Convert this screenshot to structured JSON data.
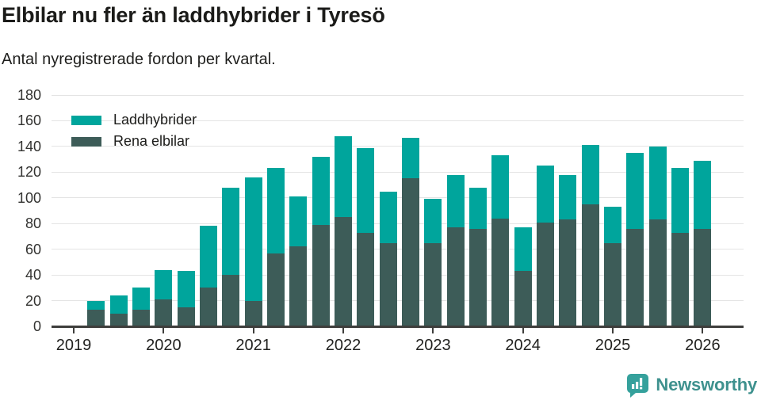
{
  "header": {
    "title": "Elbilar nu fler än laddhybrider i Tyresö",
    "subtitle": "Antal nyregistrerade fordon per kvartal."
  },
  "legend": {
    "items": [
      {
        "label": "Laddhybrider",
        "color": "#00a59c"
      },
      {
        "label": "Rena elbilar",
        "color": "#3d5c58"
      }
    ]
  },
  "footer": {
    "brand": "Newsworthy",
    "brand_icon": "bar-chart-speech-bubble-icon",
    "icon_color": "#35a19c",
    "text_color": "#3e918e"
  },
  "colors": {
    "laddhybrider": "#00a59c",
    "rena_elbilar": "#3d5c58",
    "axis": "#3e3e3c",
    "gridline": "#e4e4e4"
  },
  "chart_data": {
    "type": "bar",
    "stacked": true,
    "title": "Elbilar nu fler än laddhybrider i Tyresö",
    "subtitle": "Antal nyregistrerade fordon per kvartal.",
    "xlabel": "",
    "ylabel": "",
    "x": [
      "2019 Q2",
      "2019 Q3",
      "2019 Q4",
      "2020 Q1",
      "2020 Q2",
      "2020 Q3",
      "2020 Q4",
      "2021 Q1",
      "2021 Q2",
      "2021 Q3",
      "2021 Q4",
      "2022 Q1",
      "2022 Q2",
      "2022 Q3",
      "2022 Q4",
      "2023 Q1",
      "2023 Q2",
      "2023 Q3",
      "2023 Q4",
      "2024 Q1",
      "2024 Q2",
      "2024 Q3",
      "2024 Q4",
      "2025 Q1",
      "2025 Q2",
      "2025 Q3",
      "2025 Q4",
      "2026 Q1"
    ],
    "series": [
      {
        "name": "Rena elbilar",
        "color": "#3d5c58",
        "values": [
          13,
          10,
          13,
          21,
          15,
          30,
          40,
          20,
          57,
          62,
          79,
          85,
          73,
          65,
          115,
          65,
          77,
          76,
          84,
          43,
          81,
          83,
          95,
          65,
          76,
          83,
          73,
          76
        ]
      },
      {
        "name": "Laddhybrider",
        "color": "#00a59c",
        "values": [
          7,
          14,
          17,
          23,
          28,
          48,
          68,
          96,
          66,
          39,
          53,
          63,
          66,
          40,
          32,
          34,
          41,
          32,
          49,
          34,
          44,
          35,
          46,
          28,
          59,
          57,
          50,
          53
        ]
      }
    ],
    "totals": [
      20,
      24,
      30,
      44,
      43,
      78,
      108,
      116,
      123,
      101,
      132,
      148,
      139,
      105,
      147,
      99,
      118,
      108,
      133,
      77,
      125,
      118,
      141,
      93,
      135,
      140,
      123,
      129
    ],
    "xticks": [
      "2019",
      "2020",
      "2021",
      "2022",
      "2023",
      "2024",
      "2025",
      "2026"
    ],
    "yticks": [
      0,
      20,
      40,
      60,
      80,
      100,
      120,
      140,
      160,
      180
    ],
    "ylim": [
      0,
      180
    ],
    "grid": true,
    "legend_position": "top-left-inside"
  }
}
